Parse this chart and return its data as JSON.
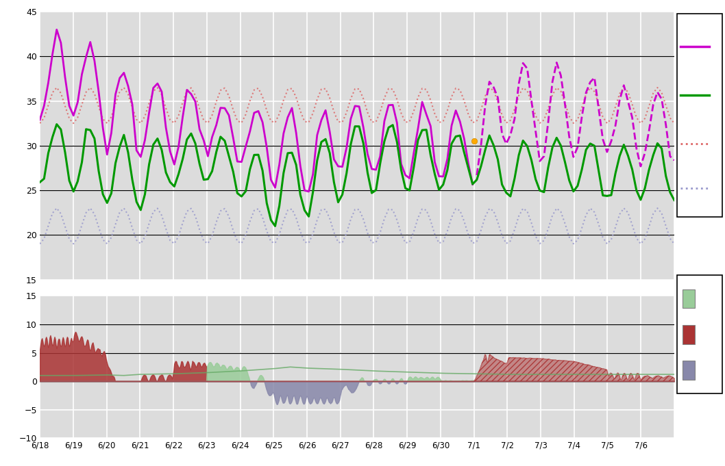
{
  "upper_ylim": [
    15,
    45
  ],
  "upper_yticks": [
    15,
    20,
    25,
    30,
    35,
    40,
    45
  ],
  "upper_hlines": [
    20,
    25,
    30,
    40
  ],
  "lower_ylim": [
    -10,
    15
  ],
  "lower_yticks": [
    -10,
    -5,
    0,
    5,
    10,
    15
  ],
  "lower_hlines": [
    0,
    5,
    10
  ],
  "date_labels": [
    "6/18",
    "6/19",
    "6/20",
    "6/21",
    "6/22",
    "6/23",
    "6/24",
    "6/25",
    "6/26",
    "6/27",
    "6/28",
    "6/29",
    "6/30",
    "7/1",
    "7/2",
    "7/3",
    "7/4",
    "7/5",
    "7/6"
  ],
  "bg_color": "#dcdcdc",
  "grid_color": "#ffffff",
  "purple_color": "#cc00cc",
  "green_color": "#009900",
  "pink_dotted_color": "#dd6666",
  "blue_dotted_color": "#9999cc",
  "green_fill_color": "#99cc99",
  "red_fill_color": "#aa3333",
  "blue_fill_color": "#8888aa",
  "green_trend_color": "#66aa66"
}
